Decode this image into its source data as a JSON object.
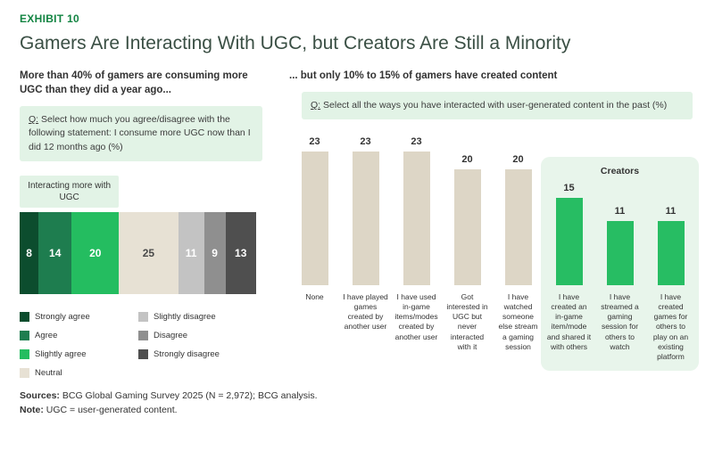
{
  "exhibit_label": "EXHIBIT 10",
  "title": "Gamers Are Interacting With UGC, but Creators Are Still a Minority",
  "colors": {
    "accent": "#128442",
    "title_text": "#3a4f44",
    "highlight_bg": "#e2f3e6",
    "creators_box_bg": "#e8f5eb"
  },
  "left": {
    "heading": "More than 40% of gamers are consuming more UGC than they did a year ago...",
    "q_label": "Q:",
    "question": "Select how much you agree/disagree with the following statement: I consume more UGC now than I did 12 months ago (%)"
  },
  "right": {
    "heading": "... but only 10% to 15% of gamers have created content",
    "q_label": "Q:",
    "question": "Select all the ways you have interacted with user-generated content in the past (%)"
  },
  "chart_data": [
    {
      "type": "bar",
      "subtype": "horizontal-stacked",
      "title": "Agreement with: I consume more UGC now than I did 12 months ago (%)",
      "segments": [
        {
          "label": "Strongly agree",
          "value": 8,
          "color": "#0c4d2e"
        },
        {
          "label": "Agree",
          "value": 14,
          "color": "#1e7d4f"
        },
        {
          "label": "Slightly agree",
          "value": 20,
          "color": "#24bd60"
        },
        {
          "label": "Neutral",
          "value": 25,
          "color": "#e7e1d4"
        },
        {
          "label": "Slightly disagree",
          "value": 11,
          "color": "#c3c3c3"
        },
        {
          "label": "Disagree",
          "value": 9,
          "color": "#8f8f8f"
        },
        {
          "label": "Strongly disagree",
          "value": 13,
          "color": "#4f4f4f"
        }
      ],
      "bracket": {
        "label": "Interacting more with UGC",
        "covers": [
          "Strongly agree",
          "Agree",
          "Slightly agree"
        ],
        "covers_percent": 42
      },
      "total": 100
    },
    {
      "type": "bar",
      "title": "Ways gamers have interacted with user-generated content (%)",
      "categories": [
        "None",
        "I have played games created by another user",
        "I have used in-game items/modes created by another user",
        "Got interested in UGC but never interacted with it",
        "I have watched someone else stream a gaming session",
        "I have created an in-game item/mode and shared it with others",
        "I have streamed a gaming session for others to watch",
        "I have created games for others to play on an existing platform"
      ],
      "values": [
        23,
        23,
        23,
        20,
        20,
        15,
        11,
        11
      ],
      "ylim": [
        0,
        25
      ],
      "grid": false,
      "colors": {
        "default": "#ddd6c6",
        "creators": "#27bd63"
      },
      "creators_group": {
        "label": "Creators",
        "start_index": 5,
        "end_index": 7
      }
    }
  ],
  "footer": {
    "sources_label": "Sources:",
    "sources_text": "BCG Global Gaming Survey 2025 (N = 2,972); BCG analysis.",
    "note_label": "Note:",
    "note_text": "UGC = user-generated content."
  }
}
